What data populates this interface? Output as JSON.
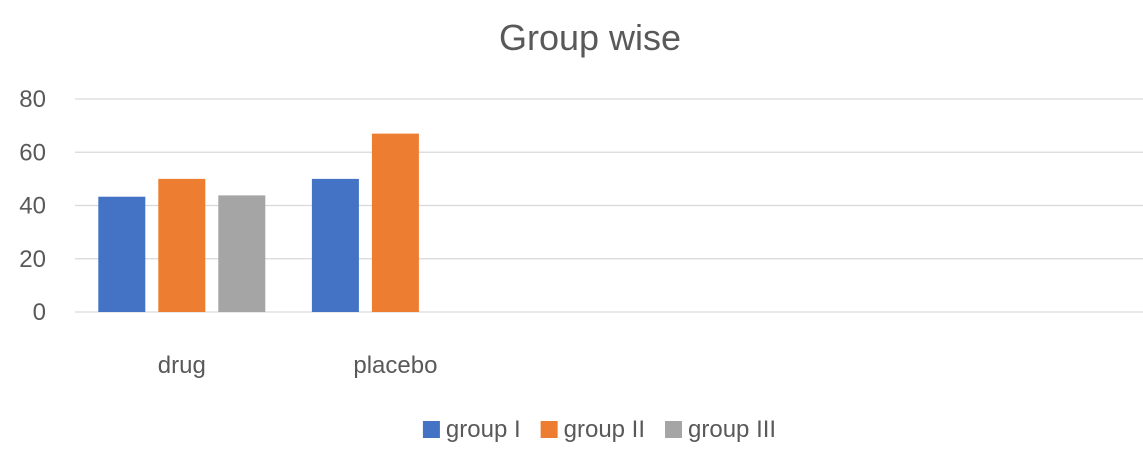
{
  "chart_data": {
    "type": "bar",
    "title": "Group wise",
    "categories": [
      "drug",
      "placebo",
      "",
      "",
      ""
    ],
    "series": [
      {
        "name": "group I",
        "color": "#4472C4",
        "values": [
          43.3,
          50,
          null,
          null,
          null
        ]
      },
      {
        "name": "group II",
        "color": "#ED7D31",
        "values": [
          50,
          67,
          null,
          null,
          null
        ]
      },
      {
        "name": "group III",
        "color": "#A5A5A5",
        "values": [
          43.8,
          null,
          null,
          null,
          null
        ]
      }
    ],
    "yticks": [
      "0",
      "20",
      "40",
      "60",
      "80"
    ],
    "ylim": [
      0,
      80
    ],
    "grid": true,
    "legend_position": "bottom"
  }
}
